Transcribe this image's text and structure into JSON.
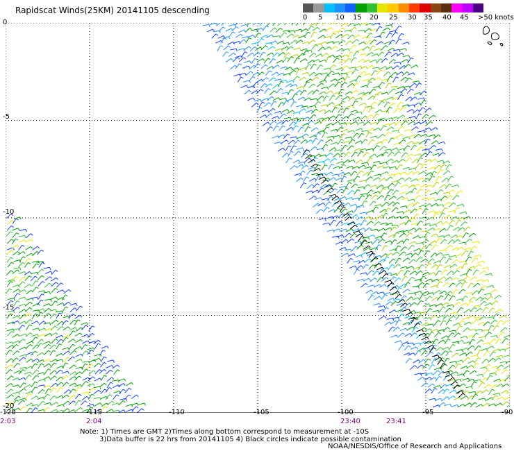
{
  "title": "Rapidscat Winds(25KM) 20141105 descending",
  "colorbar": {
    "colors": [
      "#555555",
      "#999999",
      "#00bfff",
      "#1e90ff",
      "#1060ff",
      "#00a000",
      "#30c030",
      "#e6e600",
      "#ffc800",
      "#ff8c00",
      "#ff3c00",
      "#e00000",
      "#8b4513",
      "#5a2d0c",
      "#ff00ff",
      "#c000ff",
      "#4b0082"
    ],
    "labels": [
      "0",
      "5",
      "10",
      "15",
      "20",
      "25",
      "30",
      "35",
      "40",
      "45",
      ">50 knots"
    ]
  },
  "axes": {
    "lon_labels": [
      "-120",
      "-115",
      "-110",
      "-105",
      "-100",
      "-95",
      "-90"
    ],
    "lat_labels": [
      "0",
      "-5",
      "-10",
      "-15",
      "-20"
    ]
  },
  "times": [
    "2:03",
    "2:04",
    "23:40",
    "23:41"
  ],
  "note": {
    "line1": "Note: 1) Times are GMT 2)Times along bottom correspond to measurement at -10S",
    "line2": "3)Data buffer is 22 hrs from 20141105 4) Black circles indicate possible contamination"
  },
  "credit": "NOAA/NESDIS/Office of Research and Applications"
}
